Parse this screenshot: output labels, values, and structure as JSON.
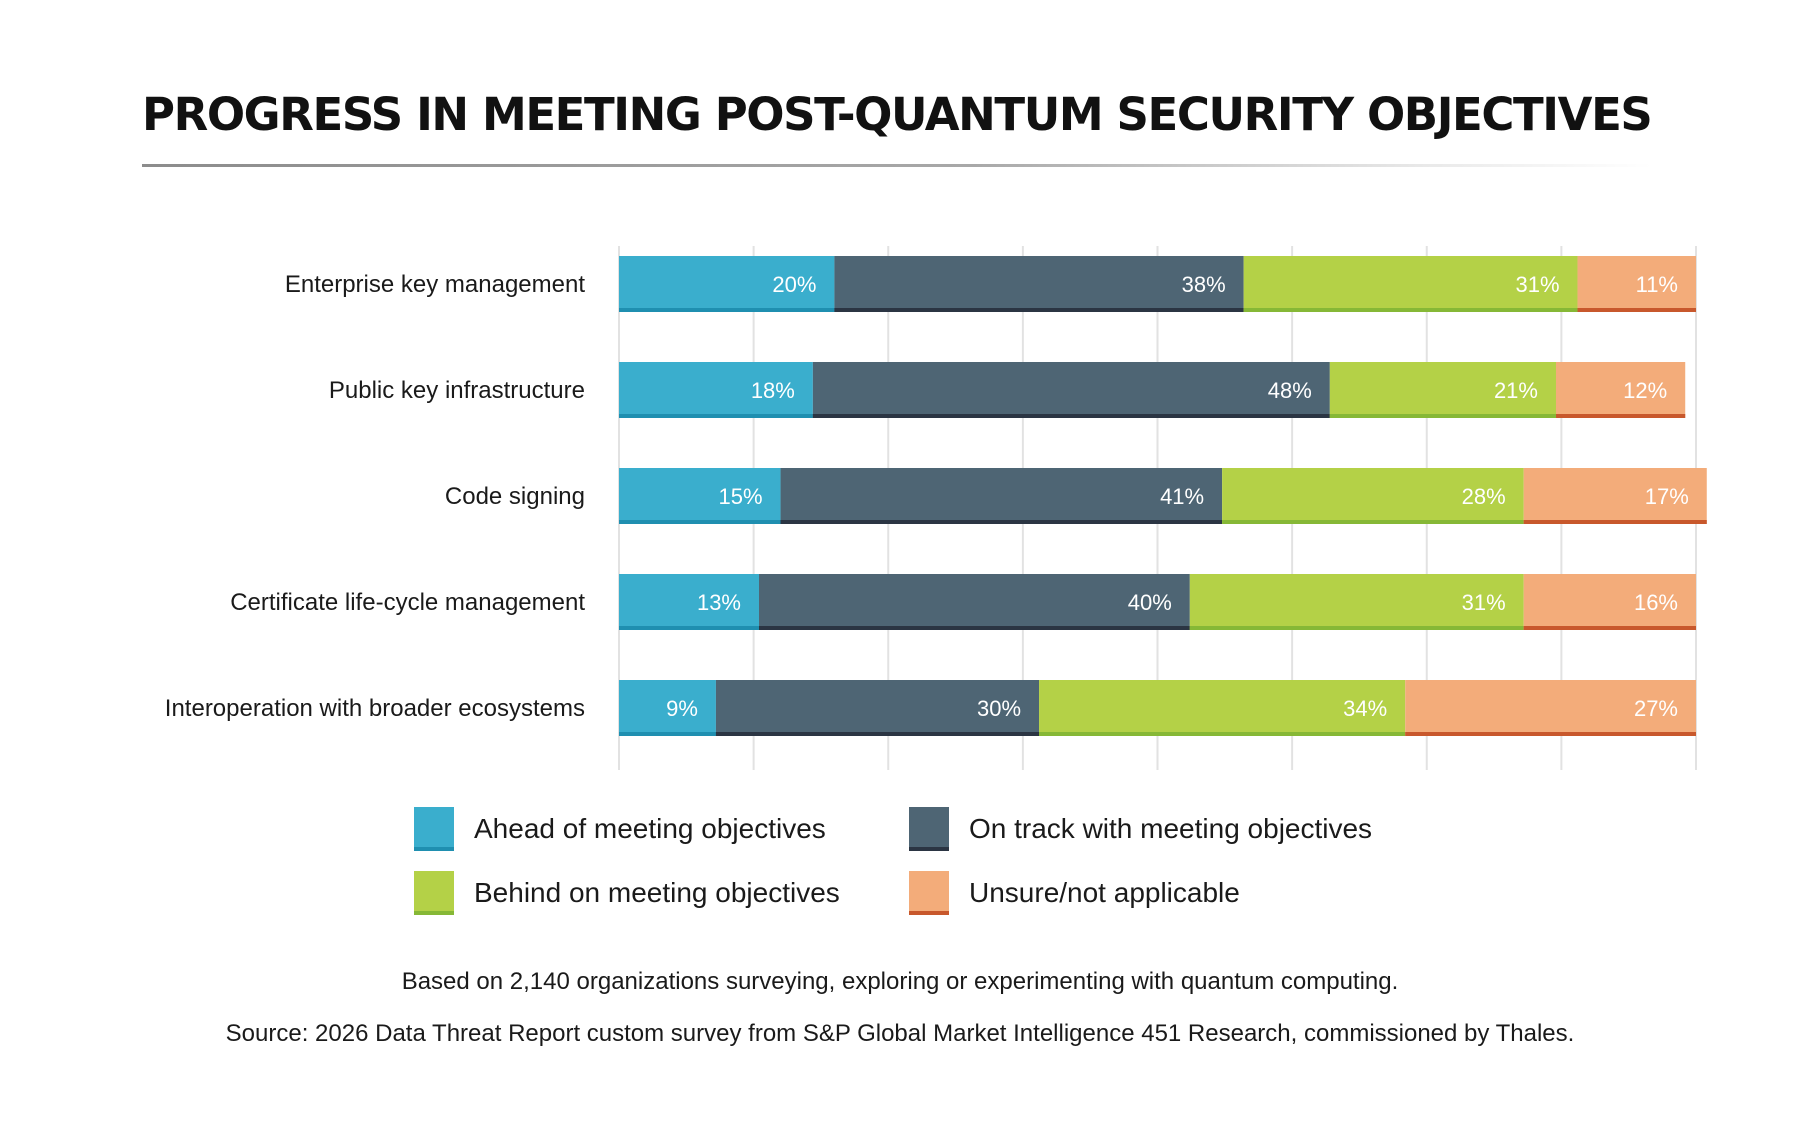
{
  "chart_data": {
    "type": "bar",
    "orientation": "horizontal",
    "stacked": true,
    "title": "PROGRESS IN MEETING POST-QUANTUM SECURITY OBJECTIVES",
    "categories": [
      "Enterprise key management",
      "Public key infrastructure",
      "Code signing",
      "Certificate life-cycle management",
      "Interoperation with broader ecosystems"
    ],
    "series": [
      {
        "name": "Ahead of meeting objectives",
        "color": "#3aaecd",
        "edge": "#1f8fb0",
        "values": [
          20,
          18,
          15,
          13,
          9
        ]
      },
      {
        "name": "On track with meeting objectives",
        "color": "#4e6574",
        "edge": "#2b3543",
        "values": [
          38,
          48,
          41,
          40,
          30
        ]
      },
      {
        "name": "Behind on meeting objectives",
        "color": "#b4d147",
        "edge": "#86b836",
        "values": [
          31,
          21,
          28,
          31,
          34
        ]
      },
      {
        "name": "Unsure/not applicable",
        "color": "#f3ac7a",
        "edge": "#c8582c",
        "values": [
          11,
          12,
          17,
          16,
          27
        ]
      }
    ],
    "value_suffix": "%",
    "xlim": [
      0,
      100
    ],
    "grid": true,
    "legend_position": "bottom"
  },
  "notes": {
    "base": "Based on 2,140 organizations surveying, exploring or experimenting with quantum computing.",
    "source": "Source: 2026 Data Threat Report custom survey from S&P Global Market Intelligence 451 Research, commissioned by Thales."
  }
}
